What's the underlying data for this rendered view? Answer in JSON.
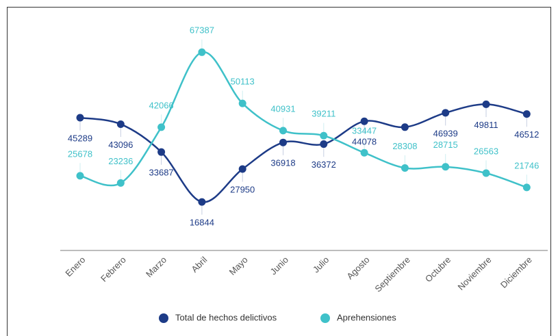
{
  "chart_data": {
    "type": "line",
    "categories": [
      "Enero",
      "Febrero",
      "Marzo",
      "Abril",
      "Mayo",
      "Junio",
      "Julio",
      "Agosto",
      "Septiembre",
      "Octubre",
      "Noviembre",
      "Diciembre"
    ],
    "series": [
      {
        "name": "Total de hechos delictivos",
        "color": "#1d3b87",
        "values": [
          45289,
          43096,
          33687,
          16844,
          27950,
          36918,
          36372,
          44078,
          42090,
          46939,
          49811,
          46512
        ],
        "value_labels": [
          "45289",
          "43096",
          "33687",
          "16844",
          "27950",
          "36918",
          "36372",
          "44078",
          null,
          "46939",
          "49811",
          "46512"
        ]
      },
      {
        "name": "Aprehensiones",
        "color": "#3fc1c9",
        "values": [
          25678,
          23236,
          42066,
          67387,
          50113,
          40931,
          39211,
          33447,
          28308,
          28715,
          26563,
          21746
        ]
      }
    ],
    "ylim": [
      0,
      70000
    ]
  }
}
